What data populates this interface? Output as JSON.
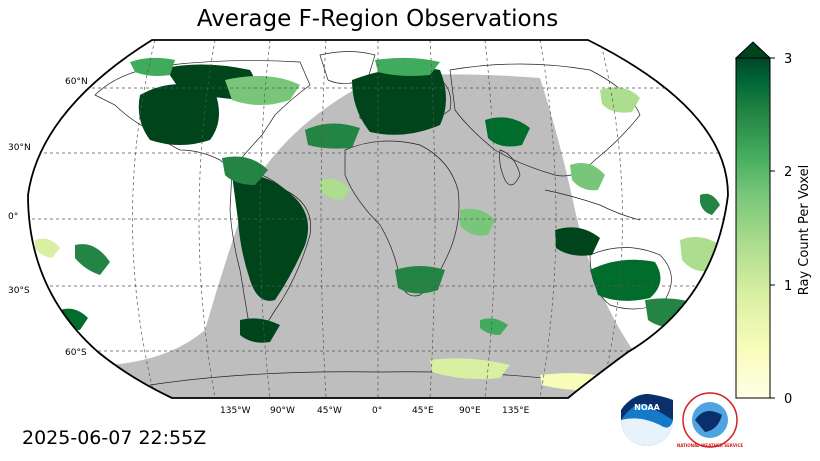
{
  "title": "Average F-Region Observations",
  "timestamp": "2025-06-07 22:55Z",
  "colorbar": {
    "label": "Ray Count Per Voxel",
    "min": 0,
    "max": 3,
    "ticks": [
      "0",
      "1",
      "2",
      "3"
    ],
    "colors": [
      "#ffffcc",
      "#d9f0a3",
      "#addd8e",
      "#78c679",
      "#41ab5d",
      "#238443",
      "#005a32",
      "#004529"
    ]
  },
  "map": {
    "lat_labels": [
      "60°N",
      "30°N",
      "0°",
      "30°S",
      "60°S"
    ],
    "lon_labels": [
      "135°W",
      "90°W",
      "45°W",
      "0°",
      "45°E",
      "90°E",
      "135°E"
    ],
    "night_color": "#bebebe",
    "land_edge": "#000000"
  },
  "logos": {
    "noaa": "NOAA",
    "nws": "NATIONAL WEATHER SERVICE"
  }
}
